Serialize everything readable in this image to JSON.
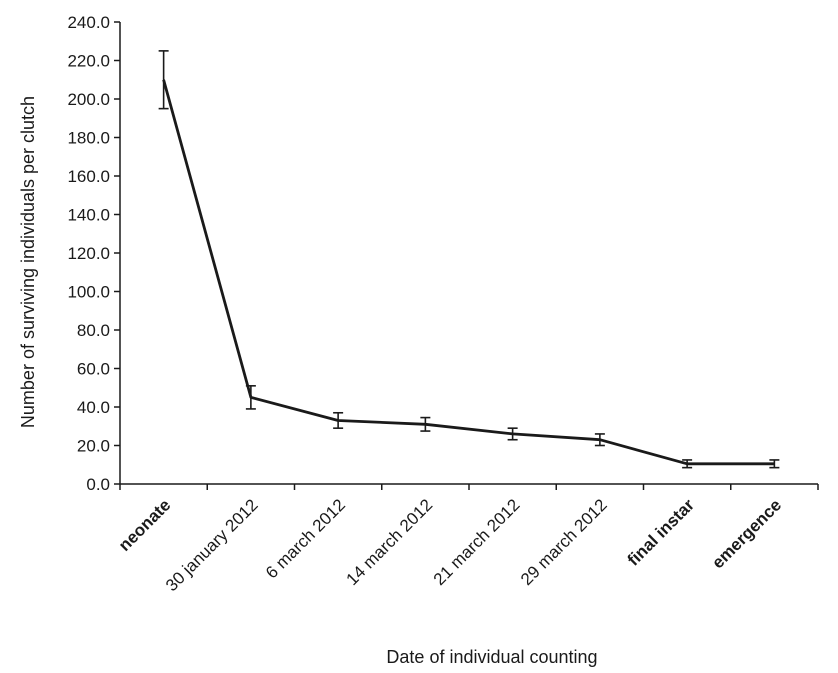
{
  "chart_data": {
    "type": "line",
    "xlabel": "Date of individual counting",
    "ylabel": "Number of surviving individuals per clutch",
    "ylim": [
      0,
      240
    ],
    "ytick_labels": [
      "0.0",
      "20.0",
      "40.0",
      "60.0",
      "80.0",
      "100.0",
      "120.0",
      "140.0",
      "160.0",
      "180.0",
      "200.0",
      "220.0",
      "240.0"
    ],
    "categories": [
      "neonate",
      "30 january 2012",
      "6 march 2012",
      "14 march 2012",
      "21 march 2012",
      "29 march 2012",
      "final instar",
      "emergence"
    ],
    "bold_categories": [
      "neonate",
      "final instar",
      "emergence"
    ],
    "series": [
      {
        "values": [
          210,
          45,
          33,
          31,
          26,
          23,
          10.5,
          10.5
        ],
        "error": [
          15,
          6,
          4,
          3.5,
          3,
          3,
          2,
          2
        ]
      }
    ],
    "grid": false,
    "line_color": "#1a1a1a"
  }
}
